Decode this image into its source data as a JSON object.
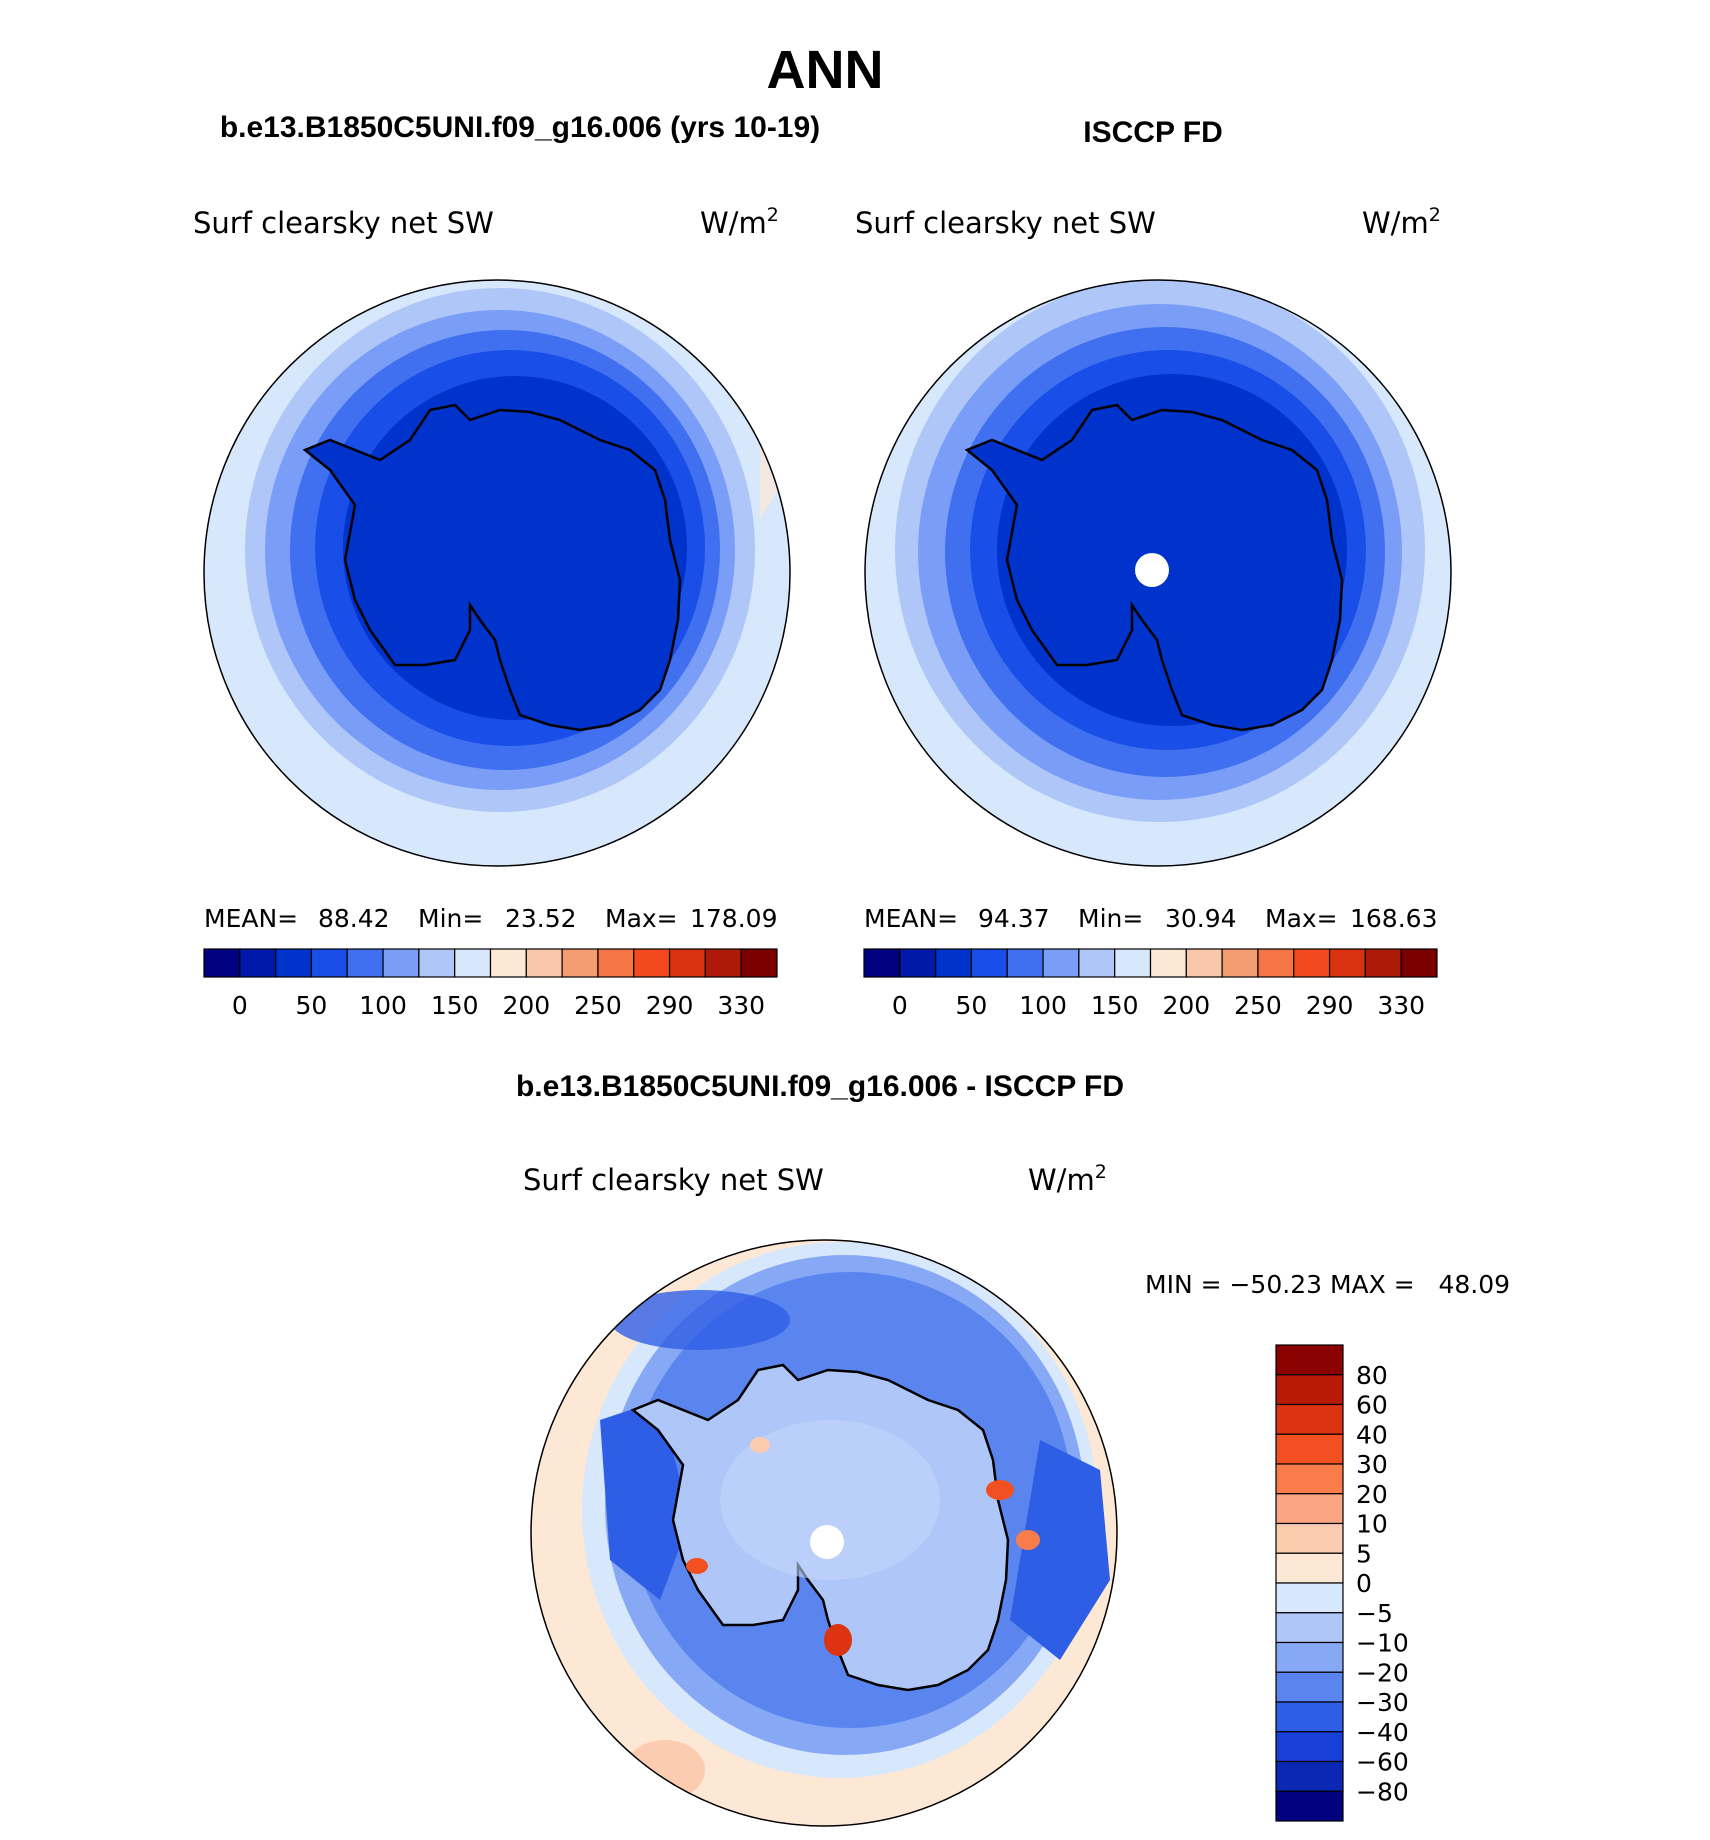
{
  "figure": {
    "season_title": "ANN",
    "panels": [
      {
        "case_title": "b.e13.B1850C5UNI.f09_g16.006 (yrs 10-19)",
        "variable": "Surf clearsky net SW",
        "units": "W/m",
        "units_exp": "2",
        "stats": {
          "mean_label": "MEAN=",
          "mean": "88.42",
          "min_label": "Min=",
          "min": "23.52",
          "max_label": "Max=",
          "max": "178.09"
        },
        "pole_hole": false
      },
      {
        "case_title": "ISCCP FD",
        "variable": "Surf clearsky net SW",
        "units": "W/m",
        "units_exp": "2",
        "stats": {
          "mean_label": "MEAN=",
          "mean": "94.37",
          "min_label": "Min=",
          "min": "30.94",
          "max_label": "Max=",
          "max": "168.63"
        },
        "pole_hole": true
      }
    ],
    "abs_colorbar": {
      "colors": [
        "#000080",
        "#0019a8",
        "#0033cc",
        "#1a4ee8",
        "#4070f0",
        "#7a9ef7",
        "#aec6f8",
        "#d8e8fc",
        "#fde8d6",
        "#f9c7aa",
        "#f59d72",
        "#f57545",
        "#f24a1e",
        "#d93210",
        "#ad1a08",
        "#7a0000"
      ],
      "labels": [
        "0",
        "50",
        "100",
        "150",
        "200",
        "250",
        "290",
        "330"
      ]
    },
    "diff_panel": {
      "title": "b.e13.B1850C5UNI.f09_g16.006 - ISCCP FD",
      "variable": "Surf clearsky net SW",
      "units": "W/m",
      "units_exp": "2",
      "min_max": "MIN = −50.23 MAX =   48.09",
      "colorbar": {
        "colors_top_to_bottom": [
          "#8b0000",
          "#b81a05",
          "#dc3410",
          "#f35021",
          "#f87d4a",
          "#fba680",
          "#fcccb0",
          "#fde8d6",
          "#d8e8fc",
          "#aec6f8",
          "#86a8f5",
          "#5a85ee",
          "#2f5ee6",
          "#1640d8",
          "#0a28b4",
          "#000080"
        ],
        "labels": [
          "80",
          "60",
          "40",
          "30",
          "20",
          "10",
          "5",
          "0",
          "−5",
          "−10",
          "−20",
          "−30",
          "−40",
          "−60",
          "−80"
        ]
      }
    }
  }
}
